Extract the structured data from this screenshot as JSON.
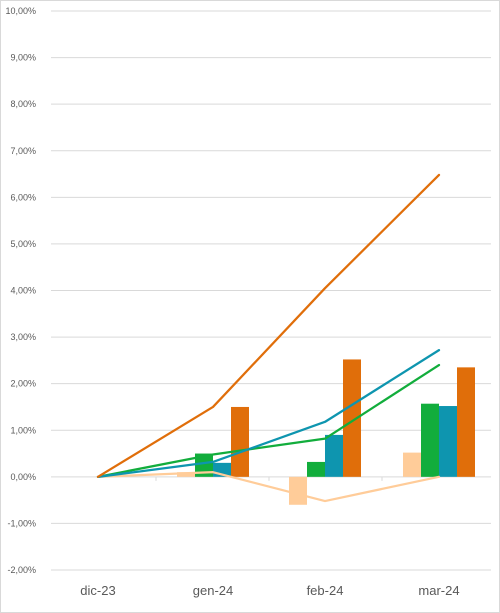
{
  "chart_data": {
    "type": "bar",
    "combo": "bar+line",
    "categories": [
      "dic-23",
      "gen-24",
      "feb-24",
      "mar-24"
    ],
    "ylim": [
      -2,
      10
    ],
    "y_tick_step": 1,
    "y_tick_format": "percent-2dec-comma",
    "y_tick_labels": [
      "-2,00%",
      "-1,00%",
      "0,00%",
      "1,00%",
      "2,00%",
      "3,00%",
      "4,00%",
      "5,00%",
      "6,00%",
      "7,00%",
      "8,00%",
      "9,00%",
      "10,00%"
    ],
    "grid": true,
    "legend": "none",
    "bar_series": [
      {
        "color": "#FFCC99",
        "values": [
          0,
          0.1,
          -0.6,
          0.52
        ]
      },
      {
        "color": "#12AD3C",
        "values": [
          0,
          0.5,
          0.32,
          1.57
        ]
      },
      {
        "color": "#0E95AF",
        "values": [
          0,
          0.3,
          0.9,
          1.52
        ]
      },
      {
        "color": "#E06E0A",
        "values": [
          0,
          1.5,
          2.52,
          2.35
        ]
      }
    ],
    "line_series": [
      {
        "color": "#FFCC99",
        "values": [
          0,
          0.1,
          -0.52,
          0
        ]
      },
      {
        "color": "#12AD3C",
        "values": [
          0,
          0.48,
          0.82,
          2.4
        ]
      },
      {
        "color": "#0E95AF",
        "values": [
          0,
          0.32,
          1.18,
          2.72
        ]
      },
      {
        "color": "#E06E0A",
        "values": [
          0,
          1.5,
          4.05,
          6.48
        ]
      }
    ]
  }
}
